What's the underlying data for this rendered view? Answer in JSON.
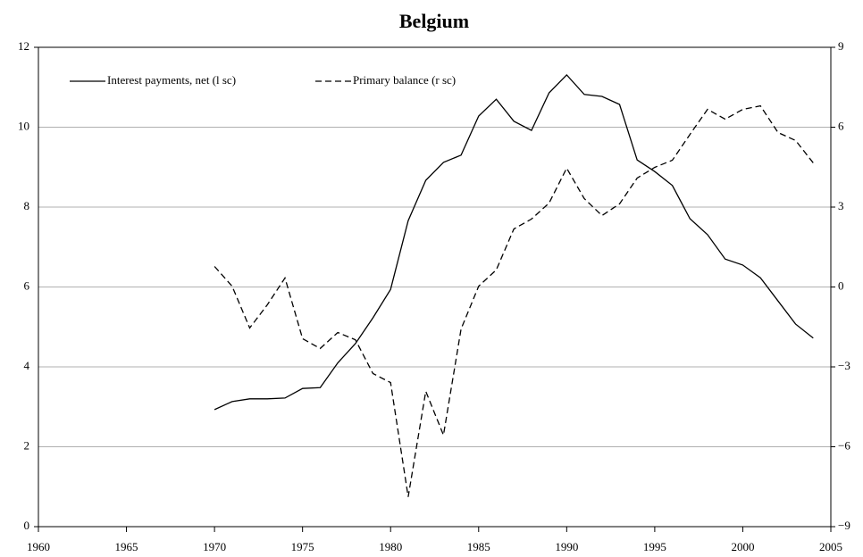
{
  "chart_data": {
    "type": "line",
    "title": "Belgium",
    "x": [
      1970,
      1971,
      1972,
      1973,
      1974,
      1975,
      1976,
      1977,
      1978,
      1979,
      1980,
      1981,
      1982,
      1983,
      1984,
      1985,
      1986,
      1987,
      1988,
      1989,
      1990,
      1991,
      1992,
      1993,
      1994,
      1995,
      1996,
      1997,
      1998,
      1999,
      2000,
      2001,
      2002,
      2003,
      2004
    ],
    "series": [
      {
        "name": "Interest payments, net (l sc)",
        "color": "#000000",
        "dash": false,
        "values": [
          2.93,
          3.13,
          3.2,
          3.2,
          3.22,
          3.46,
          3.48,
          4.1,
          4.58,
          5.23,
          5.94,
          7.66,
          8.67,
          9.12,
          9.3,
          10.28,
          10.7,
          10.15,
          9.92,
          10.86,
          11.31,
          10.82,
          10.77,
          10.57,
          9.18,
          8.89,
          8.54,
          7.71,
          7.31,
          6.7,
          6.55,
          6.23,
          5.65,
          5.07,
          4.72
        ]
      },
      {
        "name": "Primary balance (r sc)",
        "color": "#000000",
        "dash": true,
        "axis": "y2",
        "values": [
          0.77,
          0.03,
          -1.54,
          -0.67,
          0.34,
          -1.94,
          -2.31,
          -1.71,
          -1.98,
          -3.25,
          -3.59,
          -7.88,
          -3.92,
          -5.56,
          -1.58,
          0.03,
          0.64,
          2.18,
          2.55,
          3.15,
          4.46,
          3.32,
          2.68,
          3.12,
          4.09,
          4.49,
          4.76,
          5.73,
          6.67,
          6.3,
          6.67,
          6.8,
          5.8,
          5.5,
          4.66
        ]
      }
    ],
    "xlim": [
      1960,
      2005
    ],
    "xticks": [
      1960,
      1965,
      1970,
      1975,
      1980,
      1985,
      1990,
      1995,
      2000,
      2005
    ],
    "ylim": [
      0,
      12
    ],
    "yticks": [
      0,
      2,
      4,
      6,
      8,
      10,
      12
    ],
    "y2lim": [
      -9,
      9
    ],
    "y2ticks": [
      {
        "value": -9,
        "label": "−9"
      },
      {
        "value": -6,
        "label": "−6"
      },
      {
        "value": -3,
        "label": "−3"
      },
      0,
      3,
      6,
      9
    ],
    "grid": true,
    "legend": "top-left"
  }
}
